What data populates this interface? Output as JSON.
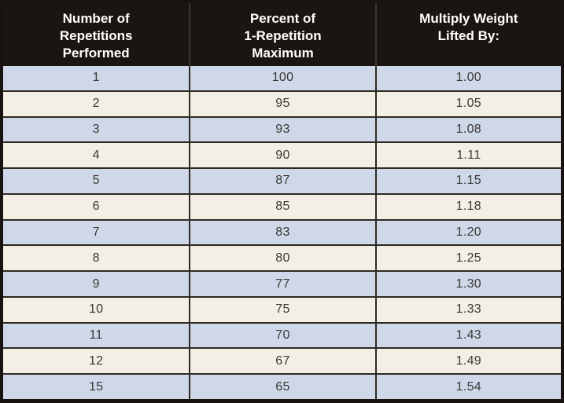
{
  "table": {
    "header": {
      "col1_lines": [
        "Number of",
        "Repetitions",
        "Performed"
      ],
      "col2_lines": [
        "Percent of",
        "1-Repetition",
        "Maximum"
      ],
      "col3_lines": [
        "Multiply Weight",
        "Lifted By:"
      ]
    }
  },
  "chart_data": {
    "type": "table",
    "columns": [
      "Number of Repetitions Performed",
      "Percent of 1-Repetition Maximum",
      "Multiply Weight Lifted By:"
    ],
    "rows": [
      [
        "1",
        "100",
        "1.00"
      ],
      [
        "2",
        "95",
        "1.05"
      ],
      [
        "3",
        "93",
        "1.08"
      ],
      [
        "4",
        "90",
        "1.11"
      ],
      [
        "5",
        "87",
        "1.15"
      ],
      [
        "6",
        "85",
        "1.18"
      ],
      [
        "7",
        "83",
        "1.20"
      ],
      [
        "8",
        "80",
        "1.25"
      ],
      [
        "9",
        "77",
        "1.30"
      ],
      [
        "10",
        "75",
        "1.33"
      ],
      [
        "11",
        "70",
        "1.43"
      ],
      [
        "12",
        "67",
        "1.49"
      ],
      [
        "15",
        "65",
        "1.54"
      ]
    ]
  },
  "colors": {
    "header_bg": "#1b1511",
    "header_text": "#ffffff",
    "row_blue": "#cfd8e8",
    "row_cream": "#f4efe5",
    "grid_line": "#2e2923",
    "body_text": "#3a3836"
  }
}
